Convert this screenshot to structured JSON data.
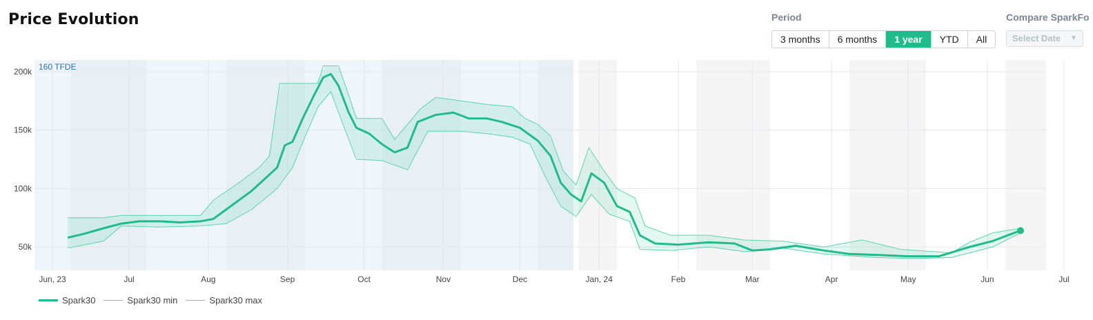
{
  "title": "Price Evolution",
  "period": {
    "label": "Period",
    "options": [
      "3 months",
      "6 months",
      "1 year",
      "YTD",
      "All"
    ],
    "selected": "1 year"
  },
  "compare": {
    "label": "Compare SparkFo",
    "placeholder": "Select Date"
  },
  "colors": {
    "main": "#1fbb8b",
    "band": "#22c796",
    "band_line": "#5bd6ad"
  },
  "chart_data": {
    "type": "line",
    "annotation": "160 TFDE",
    "x_tick_labels": [
      "Jun, 23",
      "Jul",
      "Aug",
      "Sep",
      "Oct",
      "Nov",
      "Dec",
      "Jan, 24",
      "Feb",
      "Mar",
      "Apr",
      "May",
      "Jun",
      "Jul"
    ],
    "x_range": [
      "2023-06-01",
      "2024-07-01"
    ],
    "y_range": [
      30000,
      210000
    ],
    "y_ticks": [
      50000,
      100000,
      150000,
      200000
    ],
    "y_tick_labels": [
      "50k",
      "100k",
      "150k",
      "200k"
    ],
    "grid": true,
    "legend_position": "bottom-left",
    "series": [
      {
        "name": "Spark30",
        "points": [
          [
            "2023-06-14",
            58000
          ],
          [
            "2023-06-20",
            61000
          ],
          [
            "2023-06-28",
            66000
          ],
          [
            "2023-07-05",
            70000
          ],
          [
            "2023-07-12",
            72000
          ],
          [
            "2023-07-20",
            72000
          ],
          [
            "2023-07-28",
            71000
          ],
          [
            "2023-08-05",
            72000
          ],
          [
            "2023-08-10",
            74000
          ],
          [
            "2023-08-15",
            82000
          ],
          [
            "2023-08-20",
            90000
          ],
          [
            "2023-08-25",
            98000
          ],
          [
            "2023-08-30",
            108000
          ],
          [
            "2023-09-04",
            118000
          ],
          [
            "2023-09-07",
            137000
          ],
          [
            "2023-09-10",
            140000
          ],
          [
            "2023-09-14",
            160000
          ],
          [
            "2023-09-18",
            178000
          ],
          [
            "2023-09-22",
            195000
          ],
          [
            "2023-09-25",
            198000
          ],
          [
            "2023-09-28",
            188000
          ],
          [
            "2023-10-02",
            165000
          ],
          [
            "2023-10-05",
            152000
          ],
          [
            "2023-10-10",
            147000
          ],
          [
            "2023-10-15",
            138000
          ],
          [
            "2023-10-20",
            131000
          ],
          [
            "2023-10-25",
            135000
          ],
          [
            "2023-10-29",
            157000
          ],
          [
            "2023-11-05",
            163000
          ],
          [
            "2023-11-12",
            165000
          ],
          [
            "2023-11-18",
            160000
          ],
          [
            "2023-11-25",
            160000
          ],
          [
            "2023-12-01",
            157000
          ],
          [
            "2023-12-08",
            152000
          ],
          [
            "2023-12-15",
            141000
          ],
          [
            "2023-12-20",
            128000
          ],
          [
            "2023-12-24",
            105000
          ],
          [
            "2023-12-28",
            95000
          ],
          [
            "2024-01-01",
            89000
          ],
          [
            "2024-01-05",
            113000
          ],
          [
            "2024-01-10",
            105000
          ],
          [
            "2024-01-15",
            85000
          ],
          [
            "2024-01-20",
            80000
          ],
          [
            "2024-01-24",
            60000
          ],
          [
            "2024-01-30",
            53000
          ],
          [
            "2024-02-08",
            52000
          ],
          [
            "2024-02-20",
            54000
          ],
          [
            "2024-03-01",
            53000
          ],
          [
            "2024-03-08",
            47000
          ],
          [
            "2024-03-15",
            48000
          ],
          [
            "2024-03-25",
            51000
          ],
          [
            "2024-04-05",
            47000
          ],
          [
            "2024-04-15",
            44000
          ],
          [
            "2024-04-28",
            43000
          ],
          [
            "2024-05-08",
            42000
          ],
          [
            "2024-05-20",
            42000
          ],
          [
            "2024-06-01",
            50000
          ],
          [
            "2024-06-10",
            55000
          ],
          [
            "2024-06-16",
            60000
          ],
          [
            "2024-06-21",
            64000
          ]
        ]
      },
      {
        "name": "Spark30 min",
        "points": [
          [
            "2023-06-14",
            49000
          ],
          [
            "2023-06-28",
            55000
          ],
          [
            "2023-07-05",
            68000
          ],
          [
            "2023-07-20",
            67000
          ],
          [
            "2023-08-05",
            68000
          ],
          [
            "2023-08-15",
            70000
          ],
          [
            "2023-08-25",
            82000
          ],
          [
            "2023-09-04",
            100000
          ],
          [
            "2023-09-10",
            118000
          ],
          [
            "2023-09-15",
            145000
          ],
          [
            "2023-09-20",
            170000
          ],
          [
            "2023-09-25",
            183000
          ],
          [
            "2023-09-28",
            165000
          ],
          [
            "2023-10-05",
            125000
          ],
          [
            "2023-10-15",
            124000
          ],
          [
            "2023-10-25",
            116000
          ],
          [
            "2023-11-02",
            149000
          ],
          [
            "2023-11-15",
            149000
          ],
          [
            "2023-11-25",
            147000
          ],
          [
            "2023-12-05",
            144000
          ],
          [
            "2023-12-12",
            138000
          ],
          [
            "2023-12-18",
            110000
          ],
          [
            "2023-12-24",
            85000
          ],
          [
            "2023-12-30",
            76000
          ],
          [
            "2024-01-05",
            95000
          ],
          [
            "2024-01-12",
            78000
          ],
          [
            "2024-01-20",
            72000
          ],
          [
            "2024-01-24",
            48000
          ],
          [
            "2024-02-05",
            47000
          ],
          [
            "2024-02-20",
            50000
          ],
          [
            "2024-03-05",
            46000
          ],
          [
            "2024-03-20",
            49000
          ],
          [
            "2024-04-05",
            44000
          ],
          [
            "2024-04-25",
            41000
          ],
          [
            "2024-05-10",
            40000
          ],
          [
            "2024-05-25",
            41000
          ],
          [
            "2024-06-01",
            45000
          ],
          [
            "2024-06-10",
            50000
          ],
          [
            "2024-06-21",
            62000
          ]
        ]
      },
      {
        "name": "Spark30 max",
        "points": [
          [
            "2023-06-14",
            75000
          ],
          [
            "2023-06-28",
            75000
          ],
          [
            "2023-07-05",
            77000
          ],
          [
            "2023-07-20",
            77000
          ],
          [
            "2023-08-05",
            77000
          ],
          [
            "2023-08-10",
            90000
          ],
          [
            "2023-08-20",
            105000
          ],
          [
            "2023-08-28",
            118000
          ],
          [
            "2023-09-01",
            128000
          ],
          [
            "2023-09-05",
            190000
          ],
          [
            "2023-09-20",
            190000
          ],
          [
            "2023-09-22",
            205000
          ],
          [
            "2023-09-28",
            205000
          ],
          [
            "2023-10-02",
            180000
          ],
          [
            "2023-10-05",
            160000
          ],
          [
            "2023-10-15",
            160000
          ],
          [
            "2023-10-20",
            142000
          ],
          [
            "2023-10-30",
            168000
          ],
          [
            "2023-11-05",
            178000
          ],
          [
            "2023-11-15",
            175000
          ],
          [
            "2023-11-25",
            172000
          ],
          [
            "2023-12-05",
            170000
          ],
          [
            "2023-12-10",
            160000
          ],
          [
            "2023-12-15",
            155000
          ],
          [
            "2023-12-20",
            145000
          ],
          [
            "2023-12-25",
            115000
          ],
          [
            "2023-12-30",
            103000
          ],
          [
            "2024-01-04",
            135000
          ],
          [
            "2024-01-10",
            115000
          ],
          [
            "2024-01-15",
            100000
          ],
          [
            "2024-01-22",
            92000
          ],
          [
            "2024-01-26",
            68000
          ],
          [
            "2024-02-05",
            60000
          ],
          [
            "2024-02-20",
            60000
          ],
          [
            "2024-03-05",
            56000
          ],
          [
            "2024-03-20",
            55000
          ],
          [
            "2024-04-05",
            50000
          ],
          [
            "2024-04-20",
            56000
          ],
          [
            "2024-05-05",
            48000
          ],
          [
            "2024-05-25",
            45000
          ],
          [
            "2024-06-01",
            54000
          ],
          [
            "2024-06-10",
            62000
          ],
          [
            "2024-06-21",
            66000
          ]
        ]
      }
    ]
  }
}
